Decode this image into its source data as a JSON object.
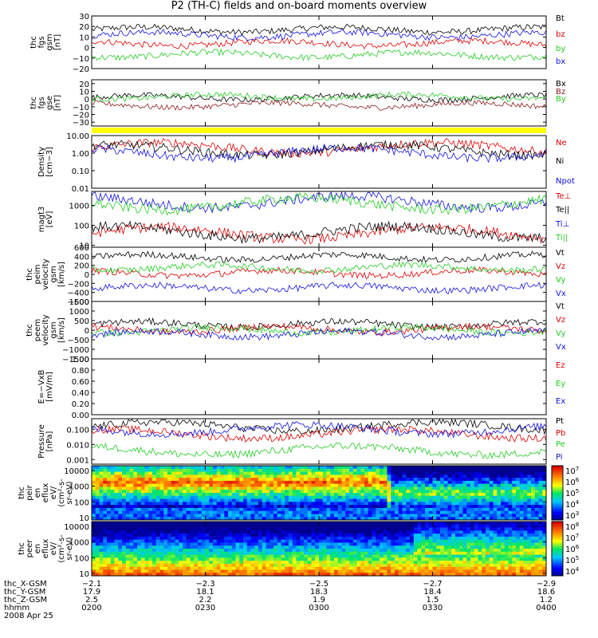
{
  "title": "P2 (TH-C) fields and on-board moments overview",
  "colors": {
    "black": "#000000",
    "red": "#dd0000",
    "green": "#22cc22",
    "blue": "#1111dd",
    "darkred": "#8b1a1a",
    "yellow": "#ffff00"
  },
  "chart_data": [
    {
      "type": "line",
      "panel": "fgs_gsm",
      "ylabel_lines": [
        "thc",
        "fgs",
        "gsm",
        "[nT]"
      ],
      "ylim": [
        -20,
        30
      ],
      "ticks": [
        "30",
        "20",
        "10",
        "0",
        "−10",
        "−20"
      ],
      "tick_values": [
        30,
        20,
        10,
        0,
        -10,
        -20
      ],
      "series": [
        {
          "name": "Bt",
          "color": "#000000",
          "baseline": 17
        },
        {
          "name": "bz",
          "color": "#dd0000",
          "baseline": 4
        },
        {
          "name": "by",
          "color": "#22cc22",
          "baseline": -7
        },
        {
          "name": "bx",
          "color": "#1111dd",
          "baseline": 12
        }
      ]
    },
    {
      "type": "line",
      "panel": "fgs_gse",
      "ylabel_lines": [
        "thc",
        "fgs",
        "gse",
        "[nT]"
      ],
      "ylim": [
        -35,
        25
      ],
      "ticks": [
        "20",
        "10",
        "0",
        "−10",
        "−20",
        "−30"
      ],
      "tick_values": [
        20,
        10,
        0,
        -10,
        -20,
        -30
      ],
      "series": [
        {
          "name": "Bx",
          "color": "#000000",
          "baseline": 2
        },
        {
          "name": "Bz",
          "color": "#8b1a1a",
          "baseline": -8
        },
        {
          "name": "By",
          "color": "#22cc22",
          "baseline": 3
        }
      ]
    },
    {
      "type": "line",
      "panel": "density",
      "ylabel_lines": [
        "Density",
        "[cm−3]"
      ],
      "ylim": [
        0.01,
        10
      ],
      "log": true,
      "ticks": [
        "10.00",
        "1.00",
        "0.10",
        "0.01"
      ],
      "tick_values": [
        10,
        1,
        0.1,
        0.01
      ],
      "series": [
        {
          "name": "Ne",
          "color": "#dd0000",
          "baseline": 2
        },
        {
          "name": "Ni",
          "color": "#000000",
          "baseline": 1.5
        },
        {
          "name": "Npot",
          "color": "#1111dd",
          "baseline": 1
        }
      ]
    },
    {
      "type": "line",
      "panel": "temperature",
      "ylabel_lines": [
        "magt3",
        "[eV]"
      ],
      "ylim": [
        8,
        5000
      ],
      "log": true,
      "ticks": [
        "1000",
        "100",
        "10"
      ],
      "tick_values": [
        1000,
        100,
        10
      ],
      "series": [
        {
          "name": "Te⊥",
          "color": "#dd0000",
          "baseline": 40
        },
        {
          "name": "Te||",
          "color": "#000000",
          "baseline": 45
        },
        {
          "name": "Ti⊥",
          "color": "#1111dd",
          "baseline": 1500
        },
        {
          "name": "Ti||",
          "color": "#22cc22",
          "baseline": 1200
        }
      ]
    },
    {
      "type": "line",
      "panel": "peim_velocity",
      "ylabel_lines": [
        "thc",
        "peim",
        "velocity",
        "gsm",
        "[km/s]"
      ],
      "ylim": [
        -600,
        600
      ],
      "ticks": [
        "600",
        "400",
        "200",
        "0",
        "−200",
        "−400",
        "−600"
      ],
      "tick_values": [
        600,
        400,
        200,
        0,
        -200,
        -400,
        -600
      ],
      "series": [
        {
          "name": "Vt",
          "color": "#000000",
          "baseline": 380
        },
        {
          "name": "Vz",
          "color": "#dd0000",
          "baseline": 30
        },
        {
          "name": "Vy",
          "color": "#22cc22",
          "baseline": 150
        },
        {
          "name": "Vx",
          "color": "#1111dd",
          "baseline": -300
        }
      ]
    },
    {
      "type": "line",
      "panel": "peem_velocity",
      "ylabel_lines": [
        "thc",
        "peem",
        "velocity",
        "gsm",
        "[km/s]"
      ],
      "ylim": [
        -1500,
        1500
      ],
      "ticks": [
        "1500",
        "1000",
        "500",
        "0",
        "−500",
        "−1000",
        "−1500"
      ],
      "tick_values": [
        1500,
        1000,
        500,
        0,
        -500,
        -1000,
        -1500
      ],
      "series": [
        {
          "name": "Vt",
          "color": "#000000",
          "baseline": 300
        },
        {
          "name": "Vz",
          "color": "#dd0000",
          "baseline": 50
        },
        {
          "name": "Vy",
          "color": "#22cc22",
          "baseline": 0
        },
        {
          "name": "Vx",
          "color": "#1111dd",
          "baseline": -200
        }
      ]
    },
    {
      "type": "line",
      "panel": "efield",
      "ylabel_lines": [
        "E=−VxB",
        "[mV/m]"
      ],
      "ylim": [
        0,
        1
      ],
      "ticks": [
        "1.00",
        "0.80",
        "0.60",
        "0.40",
        "0.20",
        "0.00"
      ],
      "tick_values": [
        1,
        0.8,
        0.6,
        0.4,
        0.2,
        0
      ],
      "series": [
        {
          "name": "Ez",
          "color": "#dd0000"
        },
        {
          "name": "Ey",
          "color": "#22cc22"
        },
        {
          "name": "Ex",
          "color": "#1111dd"
        }
      ]
    },
    {
      "type": "line",
      "panel": "pressure",
      "ylabel_lines": [
        "Pressure",
        "[nPa]"
      ],
      "ylim": [
        0.0005,
        0.5
      ],
      "log": true,
      "ticks": [
        "0.100",
        "0.010",
        "0.001"
      ],
      "tick_values": [
        0.1,
        0.01,
        0.001
      ],
      "series": [
        {
          "name": "Pt",
          "color": "#000000",
          "baseline": 0.15
        },
        {
          "name": "Pb",
          "color": "#dd0000",
          "baseline": 0.05
        },
        {
          "name": "Pe",
          "color": "#22cc22",
          "baseline": 0.004
        },
        {
          "name": "Pi",
          "color": "#1111dd",
          "baseline": 0.1
        }
      ]
    },
    {
      "type": "heatmap",
      "panel": "peir_en_eflux",
      "ylabel_lines": [
        "thc",
        "peir",
        "en",
        "eflux",
        "eV/",
        "(cm²-s-",
        "sr-eV)"
      ],
      "ticks": [
        "10000",
        "1000",
        "100",
        "10"
      ],
      "tick_values": [
        10000,
        1000,
        100,
        10
      ],
      "colorbar": {
        "exponents": [
          "7",
          "6",
          "5",
          "4",
          "3"
        ]
      }
    },
    {
      "type": "heatmap",
      "panel": "peer_en_eflux",
      "ylabel_lines": [
        "thc",
        "peer",
        "en",
        "eflux",
        "eV/",
        "(cm²-s-",
        "sr-eV)"
      ],
      "ticks": [
        "10000",
        "1000",
        "100",
        "10"
      ],
      "tick_values": [
        10000,
        1000,
        100,
        10
      ],
      "colorbar": {
        "exponents": [
          "8",
          "7",
          "6",
          "5",
          "4"
        ]
      }
    }
  ],
  "footer": {
    "row_labels": [
      "thc_X-GSM",
      "thc_Y-GSM",
      "thc_Z-GSM",
      "hhmm",
      "2008 Apr 25"
    ],
    "columns": [
      {
        "x": "−2.1",
        "y": "17.9",
        "z": "2.5",
        "hhmm": "0200"
      },
      {
        "x": "−2.3",
        "y": "18.1",
        "z": "2.2",
        "hhmm": "0230"
      },
      {
        "x": "−2.5",
        "y": "18.3",
        "z": "1.9",
        "hhmm": "0300"
      },
      {
        "x": "−2.7",
        "y": "18.4",
        "z": "1.5",
        "hhmm": "0330"
      },
      {
        "x": "−2.9",
        "y": "18.6",
        "z": "1.2",
        "hhmm": "0400"
      }
    ]
  }
}
